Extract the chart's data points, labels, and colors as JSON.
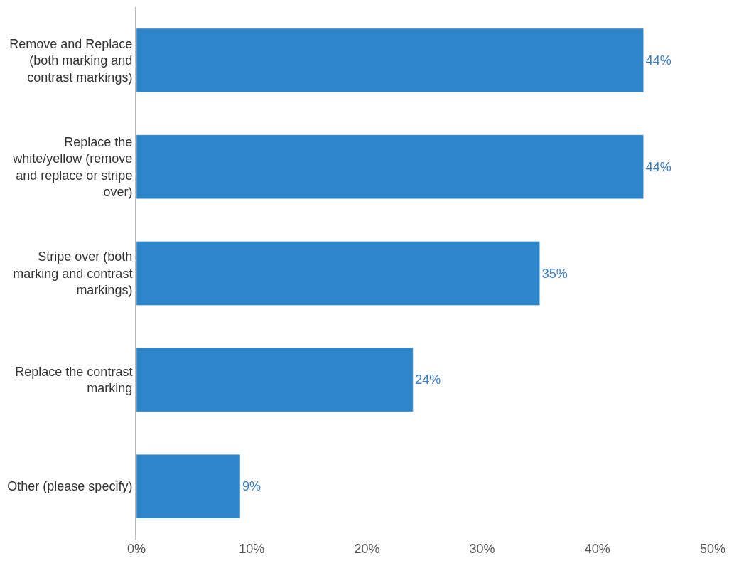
{
  "chart_data": {
    "type": "bar",
    "orientation": "horizontal",
    "categories": [
      "Remove and Replace (both marking and contrast markings)",
      "Replace the white/yellow (remove and replace or stripe over)",
      "Stripe over (both marking and contrast markings)",
      "Replace the contrast marking",
      "Other (please specify)"
    ],
    "values": [
      44,
      44,
      35,
      24,
      9
    ],
    "value_labels": [
      "44%",
      "44%",
      "35%",
      "24%",
      "9%"
    ],
    "color": "#2d86ca",
    "xlim": [
      0,
      50
    ],
    "xticks": [
      {
        "value": 0,
        "label": "0%"
      },
      {
        "value": 10,
        "label": "10%"
      },
      {
        "value": 20,
        "label": "20%"
      },
      {
        "value": 30,
        "label": "30%"
      },
      {
        "value": 40,
        "label": "40%"
      },
      {
        "value": 50,
        "label": "50%"
      }
    ],
    "tick_labels": true
  }
}
